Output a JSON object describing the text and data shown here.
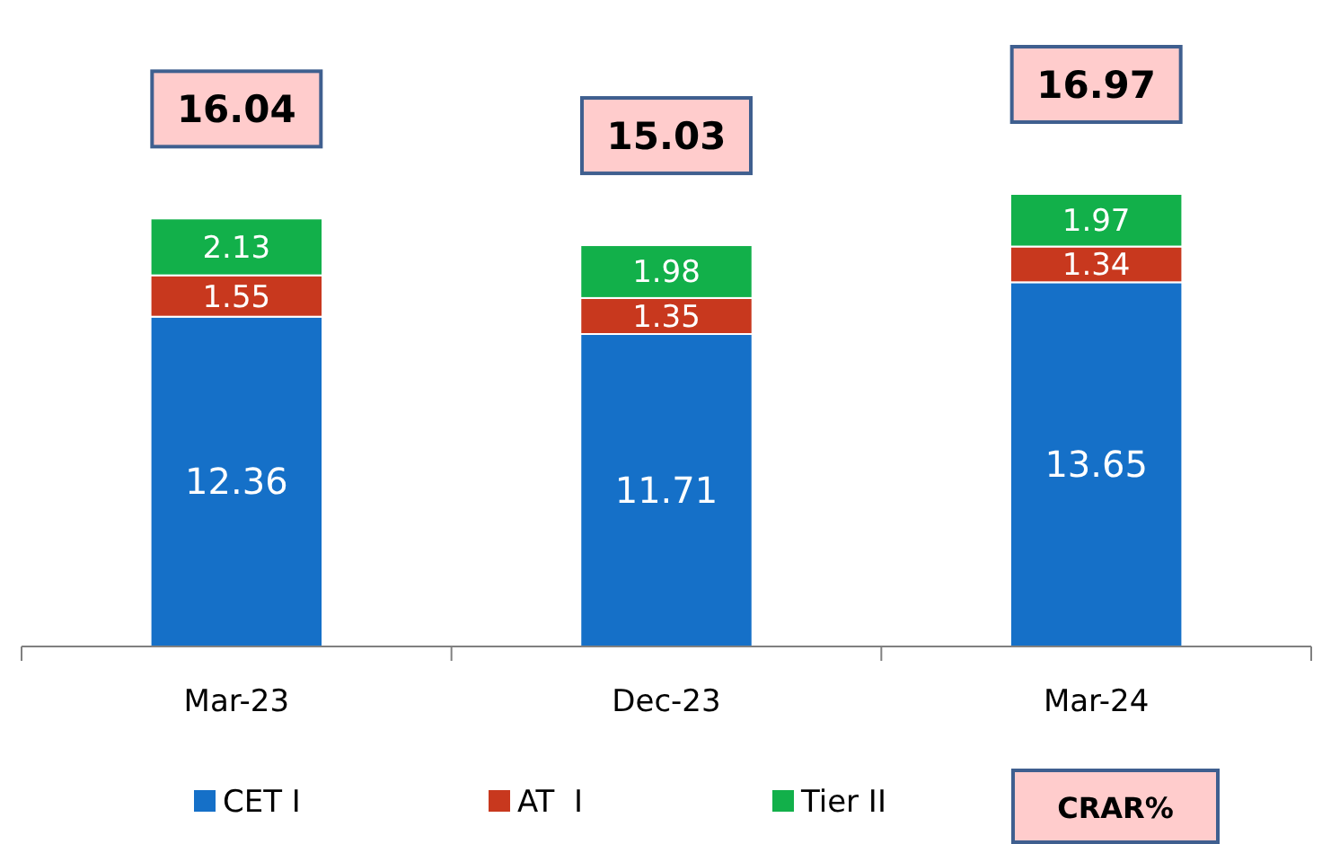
{
  "chart_data": {
    "type": "bar",
    "stacked": true,
    "categories": [
      "Mar-23",
      "Dec-23",
      "Mar-24"
    ],
    "series": [
      {
        "name": "CET I",
        "color": "#1570c8",
        "values": [
          12.36,
          11.71,
          13.65
        ]
      },
      {
        "name": "AT  I",
        "color": "#c8381e",
        "values": [
          1.55,
          1.35,
          1.34
        ]
      },
      {
        "name": "Tier II",
        "color": "#12b04a",
        "values": [
          2.13,
          1.98,
          1.97
        ]
      }
    ],
    "data_labels": true,
    "totals": [
      "16.04",
      "15.03",
      "16.97"
    ],
    "legend": "bottom",
    "annotations": [
      "CRAR%"
    ]
  }
}
